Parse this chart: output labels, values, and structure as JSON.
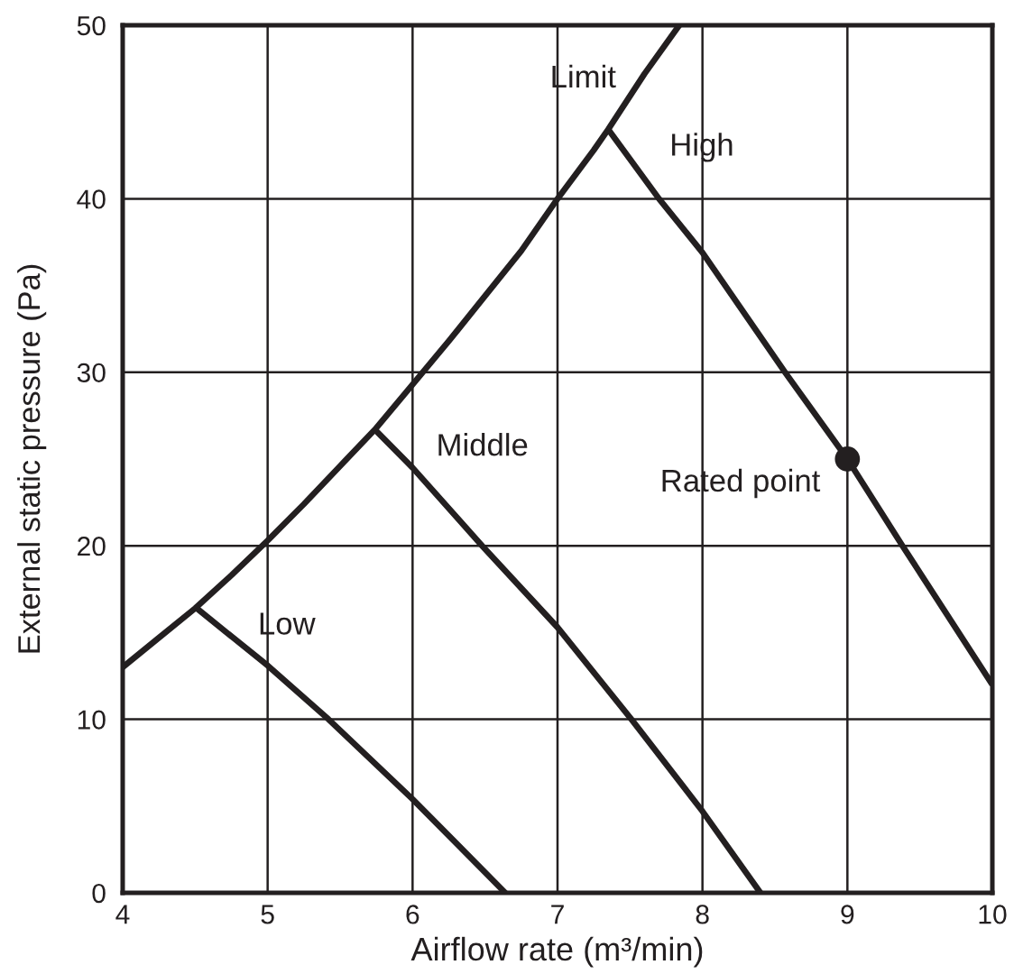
{
  "chart_data": {
    "type": "line",
    "xlabel": "Airflow rate (m³/min)",
    "ylabel": "External static pressure (Pa)",
    "xlim": [
      4,
      10
    ],
    "ylim": [
      0,
      50
    ],
    "xticks": [
      4,
      5,
      6,
      7,
      8,
      9,
      10
    ],
    "yticks": [
      0,
      10,
      20,
      30,
      40,
      50
    ],
    "grid": true,
    "legend": false,
    "line_style": "solid",
    "series": [
      {
        "name": "Limit",
        "color": "#231f20",
        "x": [
          4,
          4.25,
          4.5,
          4.75,
          5,
          5.25,
          5.5,
          5.74,
          6,
          6.25,
          6.5,
          6.75,
          7,
          7.25,
          7.35,
          7.6,
          7.84
        ],
        "values": [
          13,
          14.7,
          16.4,
          18.3,
          20.3,
          22.4,
          24.6,
          26.7,
          29.3,
          31.8,
          34.4,
          37.0,
          40,
          42.8,
          44,
          47.2,
          50
        ]
      },
      {
        "name": "High",
        "color": "#231f20",
        "x": [
          7.35,
          7.7,
          8,
          8.57,
          9,
          9.38,
          10
        ],
        "values": [
          44,
          40,
          36.9,
          30,
          25,
          20,
          12
        ]
      },
      {
        "name": "Middle",
        "color": "#231f20",
        "x": [
          5.74,
          6,
          6.48,
          7,
          7.51,
          8,
          8.4
        ],
        "values": [
          26.7,
          24.5,
          20,
          15.3,
          10,
          4.7,
          0
        ]
      },
      {
        "name": "Low",
        "color": "#231f20",
        "x": [
          4.51,
          5,
          5.42,
          6,
          6.64
        ],
        "values": [
          16.4,
          13.1,
          10,
          5.4,
          0
        ]
      },
      {
        "name": "Rated point",
        "type": "scatter",
        "marker": "circle",
        "color": "#231f20",
        "x": [
          9
        ],
        "values": [
          25
        ]
      }
    ]
  }
}
